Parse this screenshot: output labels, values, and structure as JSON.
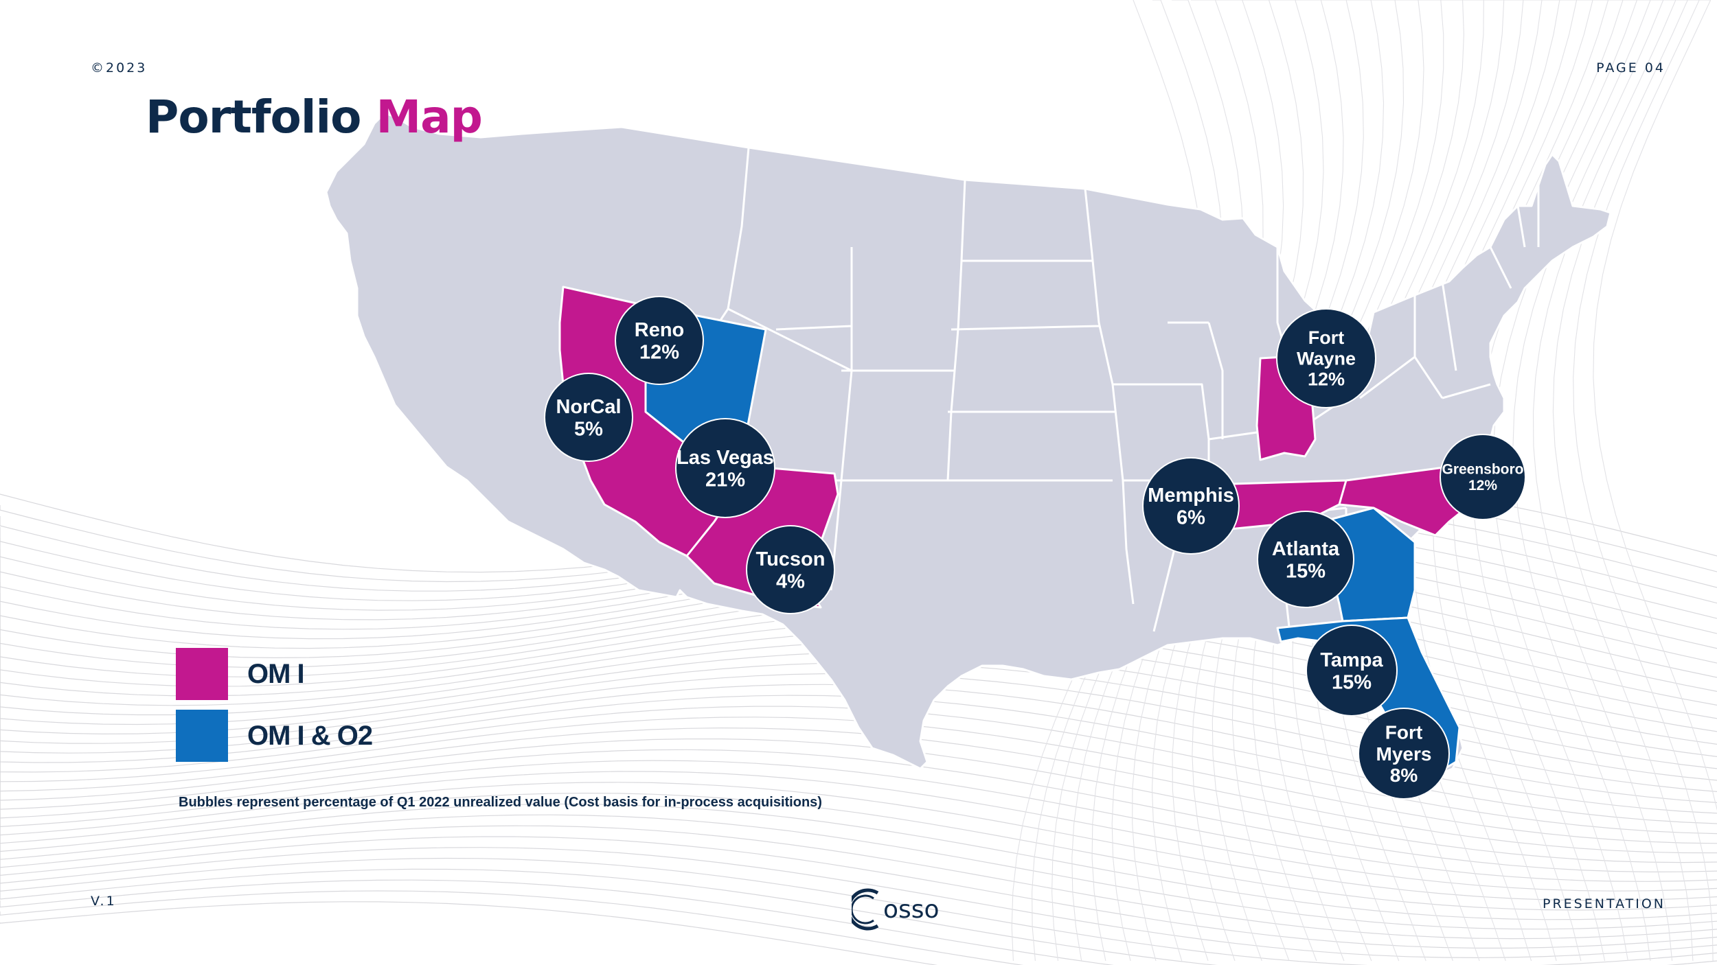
{
  "header": {
    "copyright": "©2023",
    "page": "PAGE 04",
    "title_part1": "Portfolio",
    "title_part2": "Map"
  },
  "legend": {
    "items": [
      {
        "label": "OM I",
        "color": "#c2188f"
      },
      {
        "label": "OM I & O2",
        "color": "#0f6fbe"
      }
    ]
  },
  "footnote": "Bubbles represent percentage of Q1 2022 unrealized value (Cost basis for in-process acquisitions)",
  "footer": {
    "version": "V.1",
    "logo_text": "osso",
    "right_label": "PRESENTATION"
  },
  "colors": {
    "navy": "#0e2a4a",
    "magenta": "#c2188f",
    "blue": "#0f6fbe",
    "land": "#d1d3e0",
    "border": "#ffffff"
  },
  "map": {
    "highlighted_states": [
      {
        "name": "California",
        "group": "OM I"
      },
      {
        "name": "Arizona",
        "group": "OM I"
      },
      {
        "name": "Nevada",
        "group": "OM I & O2"
      },
      {
        "name": "Indiana",
        "group": "OM I"
      },
      {
        "name": "Tennessee",
        "group": "OM I"
      },
      {
        "name": "North Carolina",
        "group": "OM I"
      },
      {
        "name": "Georgia",
        "group": "OM I & O2"
      },
      {
        "name": "Florida",
        "group": "OM I & O2"
      }
    ],
    "bubbles": [
      {
        "name": "reno",
        "lines": [
          "Reno",
          "12%"
        ]
      },
      {
        "name": "norcal",
        "lines": [
          "NorCal",
          "5%"
        ]
      },
      {
        "name": "las-vegas",
        "lines": [
          "Las Vegas",
          "21%"
        ]
      },
      {
        "name": "tucson",
        "lines": [
          "Tucson",
          "4%"
        ]
      },
      {
        "name": "fort-wayne",
        "lines": [
          "Fort",
          "Wayne",
          "12%"
        ]
      },
      {
        "name": "memphis",
        "lines": [
          "Memphis",
          "6%"
        ]
      },
      {
        "name": "greensboro",
        "lines": [
          "Greensboro",
          "12%"
        ]
      },
      {
        "name": "atlanta",
        "lines": [
          "Atlanta",
          "15%"
        ]
      },
      {
        "name": "tampa",
        "lines": [
          "Tampa",
          "15%"
        ]
      },
      {
        "name": "fort-myers",
        "lines": [
          "Fort",
          "Myers",
          "8%"
        ]
      }
    ]
  }
}
